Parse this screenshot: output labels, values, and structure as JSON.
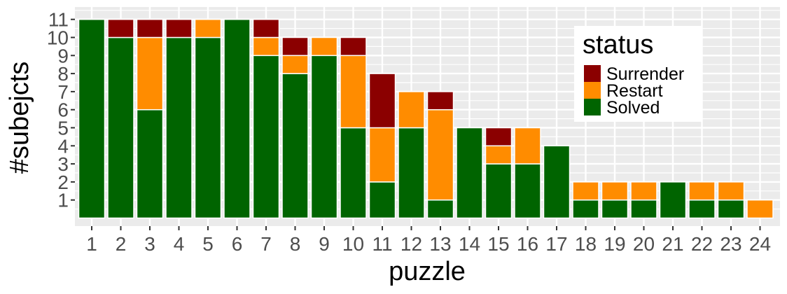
{
  "chart_data": {
    "type": "bar",
    "stacked": true,
    "xlabel": "puzzle",
    "ylabel": "#subejcts",
    "categories": [
      "1",
      "2",
      "3",
      "4",
      "5",
      "6",
      "7",
      "8",
      "9",
      "10",
      "11",
      "12",
      "13",
      "14",
      "15",
      "16",
      "17",
      "18",
      "19",
      "20",
      "21",
      "22",
      "23",
      "24"
    ],
    "yticks": [
      "1",
      "2",
      "3",
      "4",
      "5",
      "6",
      "7",
      "8",
      "9",
      "10",
      "11"
    ],
    "ylim": [
      0,
      11.5
    ],
    "series": [
      {
        "name": "Solved",
        "color": "#006400",
        "values": [
          11,
          10,
          6,
          10,
          10,
          11,
          9,
          8,
          9,
          5,
          2,
          5,
          1,
          5,
          3,
          3,
          4,
          1,
          1,
          1,
          2,
          1,
          1,
          0
        ]
      },
      {
        "name": "Restart",
        "color": "#ff8c00",
        "values": [
          0,
          0,
          4,
          0,
          1,
          0,
          1,
          1,
          1,
          4,
          3,
          2,
          5,
          0,
          1,
          2,
          0,
          1,
          1,
          1,
          0,
          1,
          1,
          1
        ]
      },
      {
        "name": "Surrender",
        "color": "#8b0000",
        "values": [
          0,
          1,
          1,
          1,
          0,
          0,
          1,
          1,
          0,
          1,
          3,
          0,
          1,
          0,
          1,
          0,
          0,
          0,
          0,
          0,
          0,
          0,
          0,
          0
        ]
      }
    ],
    "legend": {
      "title": "status",
      "placement": "top-right",
      "entries": [
        {
          "label": "Surrender",
          "color": "#8b0000"
        },
        {
          "label": "Restart",
          "color": "#ff8c00"
        },
        {
          "label": "Solved",
          "color": "#006400"
        }
      ]
    },
    "grid": true,
    "panel_background": "#ebebeb"
  }
}
